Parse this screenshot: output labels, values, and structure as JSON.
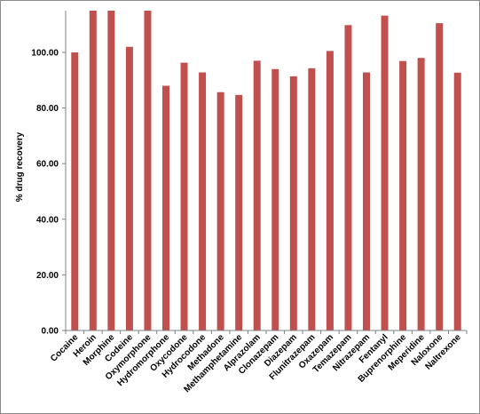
{
  "chart_data": {
    "type": "bar",
    "title": "",
    "xlabel": "",
    "ylabel": "% drug recovery",
    "ylim": [
      0,
      115
    ],
    "yticks": [
      "0.00",
      "20.00",
      "40.00",
      "60.00",
      "80.00",
      "100.00"
    ],
    "grid": false,
    "legend": "none",
    "bar_color": "#C0504D",
    "categories": [
      "Cocaine",
      "Heroin",
      "Morphine",
      "Codeine",
      "Oxymorphone",
      "Hydromorphone",
      "Oxycodone",
      "Hydrocodone",
      "Methadone",
      "Methamphetamine",
      "Alprazolam",
      "Clonazepam",
      "Diazepam",
      "Flunitrazepam",
      "Oxazepam",
      "Temazepam",
      "Nitrazepam",
      "Fentanyl",
      "Buprenorphine",
      "Meperidine",
      "Naloxone",
      "Naltrexone"
    ],
    "values": [
      100.0,
      115.0,
      115.0,
      102.0,
      115.0,
      88.0,
      96.3,
      92.8,
      85.7,
      84.7,
      97.0,
      94.0,
      91.4,
      94.3,
      100.5,
      109.8,
      92.8,
      113.2,
      96.9,
      98.0,
      110.5,
      92.7
    ]
  }
}
